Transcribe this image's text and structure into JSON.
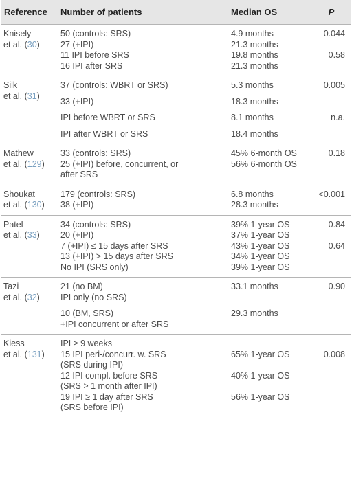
{
  "header": {
    "reference": "Reference",
    "patients": "Number of patients",
    "median_os": "Median OS",
    "p": "P"
  },
  "studies": [
    {
      "author": "Knisely",
      "etal": "et al. (",
      "cite": "30",
      "close": ")",
      "rows": [
        {
          "patients": "50 (controls: SRS)",
          "os": "4.9 months",
          "p": "0.044"
        },
        {
          "patients": "27 (+IPI)",
          "os": "21.3 months",
          "p": ""
        },
        {
          "patients": "11 IPI before SRS",
          "os": "19.8 months",
          "p": "0.58"
        },
        {
          "patients": "16 IPI after SRS",
          "os": "21.3 months",
          "p": ""
        }
      ]
    },
    {
      "author": "Silk",
      "etal": "et al. (",
      "cite": "31",
      "close": ")",
      "rows": [
        {
          "patients": "37 (controls: WBRT or SRS)",
          "os": "5.3 months",
          "p": "0.005"
        },
        {
          "patients": "33 (+IPI)",
          "os": "18.3 months",
          "p": ""
        },
        {
          "patients": "IPI before WBRT or SRS",
          "os": "8.1 months",
          "p": "n.a."
        },
        {
          "patients": "IPI after WBRT or SRS",
          "os": "18.4 months",
          "p": ""
        }
      ]
    },
    {
      "author": "Mathew",
      "etal": "et al. (",
      "cite": "129",
      "close": ")",
      "rows": [
        {
          "patients": "33 (controls: SRS)",
          "os": "45% 6-month OS",
          "p": "0.18"
        },
        {
          "patients": "25 (+IPI) before, concurrent, or",
          "os": "56% 6-month OS",
          "p": ""
        },
        {
          "patients": "after SRS",
          "os": "",
          "p": ""
        }
      ]
    },
    {
      "author": "Shoukat",
      "etal": "et al. (",
      "cite": "130",
      "close": ")",
      "rows": [
        {
          "patients": "179 (controls: SRS)",
          "os": "6.8 months",
          "p": "<0.001"
        },
        {
          "patients": "38 (+IPI)",
          "os": "28.3 months",
          "p": ""
        }
      ]
    },
    {
      "author": "Patel",
      "etal": "et al. (",
      "cite": "33",
      "close": ")",
      "rows": [
        {
          "patients": "34 (controls: SRS)",
          "os": "39% 1-year OS",
          "p": "0.84"
        },
        {
          "patients": "20 (+IPI)",
          "os": "37% 1-year OS",
          "p": ""
        },
        {
          "patients": "7 (+IPI) ≤ 15 days after SRS",
          "os": "43% 1-year OS",
          "p": "0.64"
        },
        {
          "patients": "13 (+IPI) > 15 days after SRS",
          "os": "34% 1-year OS",
          "p": ""
        },
        {
          "patients": "No IPI (SRS only)",
          "os": "39% 1-year OS",
          "p": ""
        }
      ]
    },
    {
      "author": "Tazi",
      "etal": "et al. (",
      "cite": "32",
      "close": ")",
      "rows": [
        {
          "patients": "21 (no BM)",
          "os": "33.1 months",
          "p": "0.90"
        },
        {
          "patients": "IPI only (no SRS)",
          "os": "",
          "p": ""
        },
        {
          "patients": "10 (BM, SRS)",
          "os": "29.3 months",
          "p": ""
        },
        {
          "patients": "+IPI concurrent or after SRS",
          "os": "",
          "p": ""
        }
      ]
    },
    {
      "author": "Kiess",
      "etal": "et al. (",
      "cite": "131",
      "close": ")",
      "rows": [
        {
          "patients": "IPI ≥ 9 weeks",
          "os": "",
          "p": ""
        },
        {
          "patients": "15 IPI peri-/concurr. w. SRS",
          "os": "65% 1-year OS",
          "p": "0.008"
        },
        {
          "patients": "(SRS during IPI)",
          "os": "",
          "p": ""
        },
        {
          "patients": "12 IPI compl. before SRS",
          "os": "40% 1-year OS",
          "p": ""
        },
        {
          "patients": "(SRS > 1 month after IPI)",
          "os": "",
          "p": ""
        },
        {
          "patients": "19 IPI ≥ 1 day after SRS",
          "os": "56% 1-year OS",
          "p": ""
        },
        {
          "patients": "(SRS before IPI)",
          "os": "",
          "p": ""
        }
      ]
    }
  ]
}
